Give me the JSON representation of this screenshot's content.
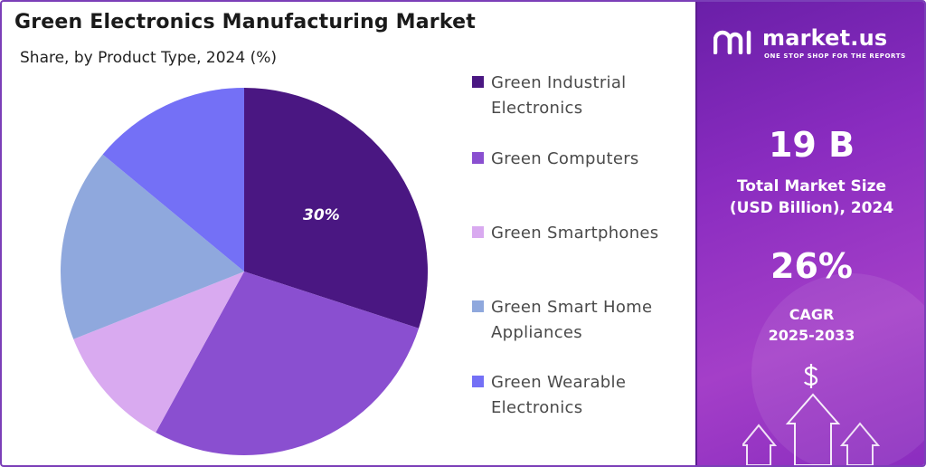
{
  "header": {
    "title": "Green Electronics Manufacturing Market",
    "subtitle": "Share, by Product Type, 2024 (%)"
  },
  "chart_data": {
    "type": "pie",
    "title": "Green Electronics Manufacturing Market",
    "subtitle": "Share, by Product Type, 2024 (%)",
    "categories": [
      "Green Industrial Electronics",
      "Green Computers",
      "Green Smartphones",
      "Green Smart Home Appliances",
      "Green Wearable Electronics"
    ],
    "values": [
      30,
      28,
      11,
      17,
      14
    ],
    "colors": [
      "#4a1782",
      "#8a4fd0",
      "#d9aaf0",
      "#8fa8dd",
      "#7470f6"
    ],
    "data_labels": [
      "30%",
      "",
      "",
      "",
      ""
    ],
    "legend_position": "right",
    "label_color": "#ffffff"
  },
  "legend": {
    "items": [
      {
        "lines": [
          "Green Industrial",
          "Electronics"
        ]
      },
      {
        "lines": [
          "Green Computers"
        ]
      },
      {
        "lines": [
          "Green Smartphones"
        ]
      },
      {
        "lines": [
          "Green Smart Home",
          "Appliances"
        ]
      },
      {
        "lines": [
          "Green Wearable",
          "Electronics"
        ]
      }
    ]
  },
  "sidebar": {
    "brand_name": "market.us",
    "brand_tagline": "ONE STOP SHOP FOR THE REPORTS",
    "market_size_value": "19 B",
    "market_size_label_1": "Total Market Size",
    "market_size_label_2": "(USD Billion), 2024",
    "cagr_value": "26%",
    "cagr_label_1": "CAGR",
    "cagr_label_2": "2025-2033",
    "icons": [
      "market-us-logo-icon",
      "dollar-icon",
      "growth-arrows-icon"
    ]
  }
}
